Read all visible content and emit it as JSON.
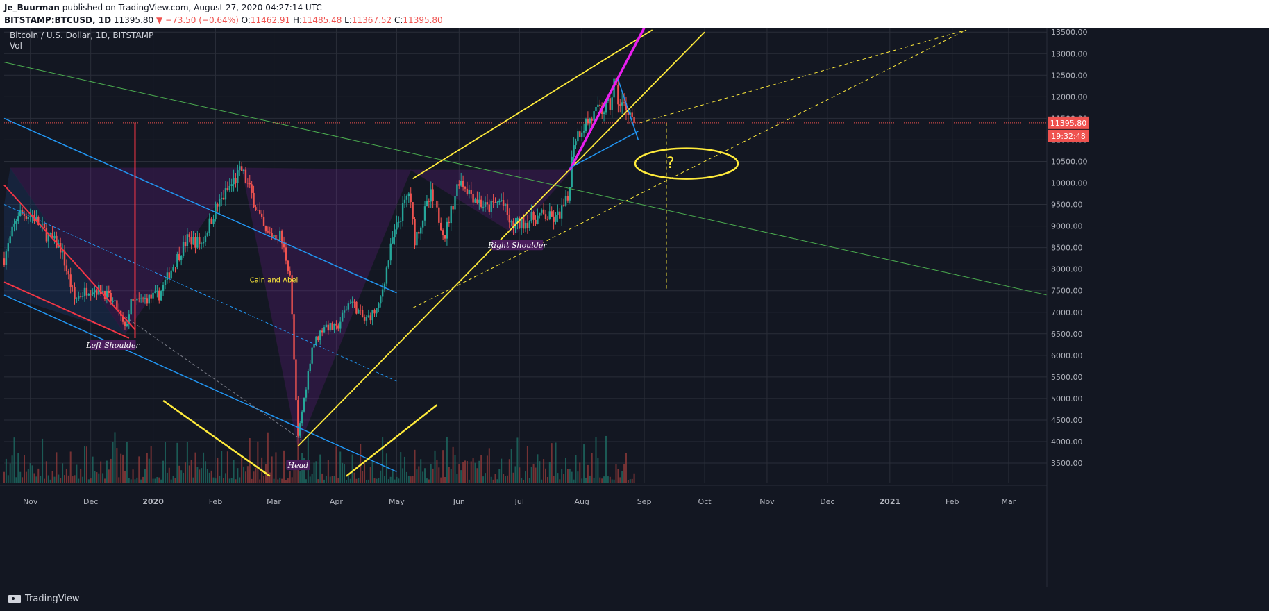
{
  "header": {
    "author": "Je_Buurman",
    "published_text": "published on TradingView.com, August 27, 2020 04:27:14 UTC",
    "symbol": "BITSTAMP:BTCUSD, 1D",
    "last": "11395.80",
    "change": "▼ −73.50 (−0.64%)",
    "o_label": "O:",
    "o": "11462.91",
    "h_label": "H:",
    "h": "11485.48",
    "l_label": "L:",
    "l": "11367.52",
    "c_label": "C:",
    "c": "11395.80"
  },
  "legend": {
    "title": "Bitcoin / U.S. Dollar, 1D, BITSTAMP",
    "indicator": "Vol"
  },
  "footer": {
    "brand": "TradingView"
  },
  "colors": {
    "background": "#131722",
    "grid": "#2a2e39",
    "up": "#26a69a",
    "down": "#ef5350",
    "yellow": "#ffeb3b",
    "magenta": "#e91eef",
    "blue": "#2196f3",
    "green": "#4caf50",
    "purple_fill": "#7b1fa2"
  },
  "chart_data": {
    "type": "candlestick",
    "symbol": "BTCUSD",
    "timeframe": "1D",
    "y_axis": {
      "ticks": [
        "13500.00",
        "13000.00",
        "12500.00",
        "12000.00",
        "11500.00",
        "11000.00",
        "10500.00",
        "10000.00",
        "9500.00",
        "9000.00",
        "8500.00",
        "8000.00",
        "7500.00",
        "7000.00",
        "6500.00",
        "6000.00",
        "5500.00",
        "5000.00",
        "4500.00",
        "4000.00",
        "3500.00"
      ],
      "ylim": [
        3050,
        13600
      ]
    },
    "x_axis": {
      "ticks": [
        "Nov",
        "Dec",
        "2020",
        "Feb",
        "Mar",
        "Apr",
        "May",
        "Jun",
        "Jul",
        "Aug",
        "Sep",
        "Oct",
        "Nov",
        "Dec",
        "2021",
        "Feb",
        "Mar"
      ],
      "bold_ticks": [
        "2020",
        "2021"
      ],
      "xlim": [
        "2019-10-19",
        "2021-03-20"
      ]
    },
    "price_badge": "11395.80",
    "countdown_badge": "19:32:48",
    "last_price": 11395.8,
    "price_path": [
      [
        "2019-10-19",
        8250
      ],
      [
        "2019-10-26",
        9300
      ],
      [
        "2019-11-02",
        9250
      ],
      [
        "2019-11-09",
        8800
      ],
      [
        "2019-11-16",
        8500
      ],
      [
        "2019-11-23",
        7300
      ],
      [
        "2019-11-30",
        7550
      ],
      [
        "2019-12-07",
        7500
      ],
      [
        "2019-12-14",
        7100
      ],
      [
        "2019-12-18",
        6600
      ],
      [
        "2019-12-21",
        7200
      ],
      [
        "2019-12-28",
        7300
      ],
      [
        "2020-01-04",
        7400
      ],
      [
        "2020-01-11",
        8100
      ],
      [
        "2020-01-18",
        8700
      ],
      [
        "2020-01-25",
        8600
      ],
      [
        "2020-02-01",
        9400
      ],
      [
        "2020-02-08",
        9900
      ],
      [
        "2020-02-14",
        10300
      ],
      [
        "2020-02-20",
        9600
      ],
      [
        "2020-02-26",
        8800
      ],
      [
        "2020-03-04",
        8800
      ],
      [
        "2020-03-09",
        7900
      ],
      [
        "2020-03-12",
        4900
      ],
      [
        "2020-03-13",
        4100
      ],
      [
        "2020-03-16",
        5000
      ],
      [
        "2020-03-20",
        6200
      ],
      [
        "2020-03-26",
        6700
      ],
      [
        "2020-04-01",
        6600
      ],
      [
        "2020-04-08",
        7300
      ],
      [
        "2020-04-15",
        6800
      ],
      [
        "2020-04-22",
        7100
      ],
      [
        "2020-04-29",
        8700
      ],
      [
        "2020-05-07",
        9800
      ],
      [
        "2020-05-10",
        8700
      ],
      [
        "2020-05-18",
        9700
      ],
      [
        "2020-05-25",
        8800
      ],
      [
        "2020-06-01",
        10100
      ],
      [
        "2020-06-08",
        9700
      ],
      [
        "2020-06-15",
        9400
      ],
      [
        "2020-06-22",
        9600
      ],
      [
        "2020-06-27",
        9000
      ],
      [
        "2020-07-04",
        9100
      ],
      [
        "2020-07-12",
        9250
      ],
      [
        "2020-07-19",
        9150
      ],
      [
        "2020-07-25",
        9600
      ],
      [
        "2020-07-28",
        11000
      ],
      [
        "2020-08-01",
        11300
      ],
      [
        "2020-08-08",
        11600
      ],
      [
        "2020-08-15",
        11800
      ],
      [
        "2020-08-17",
        12300
      ],
      [
        "2020-08-20",
        11800
      ],
      [
        "2020-08-24",
        11750
      ],
      [
        "2020-08-27",
        11395.8
      ]
    ],
    "volume_scale": 0.35,
    "annotations": {
      "left_shoulder": "Left Shoulder",
      "head": "Head",
      "right_shoulder": "Right Shoulder",
      "cain_abel": "Cain and Abel",
      "question": "?"
    }
  }
}
